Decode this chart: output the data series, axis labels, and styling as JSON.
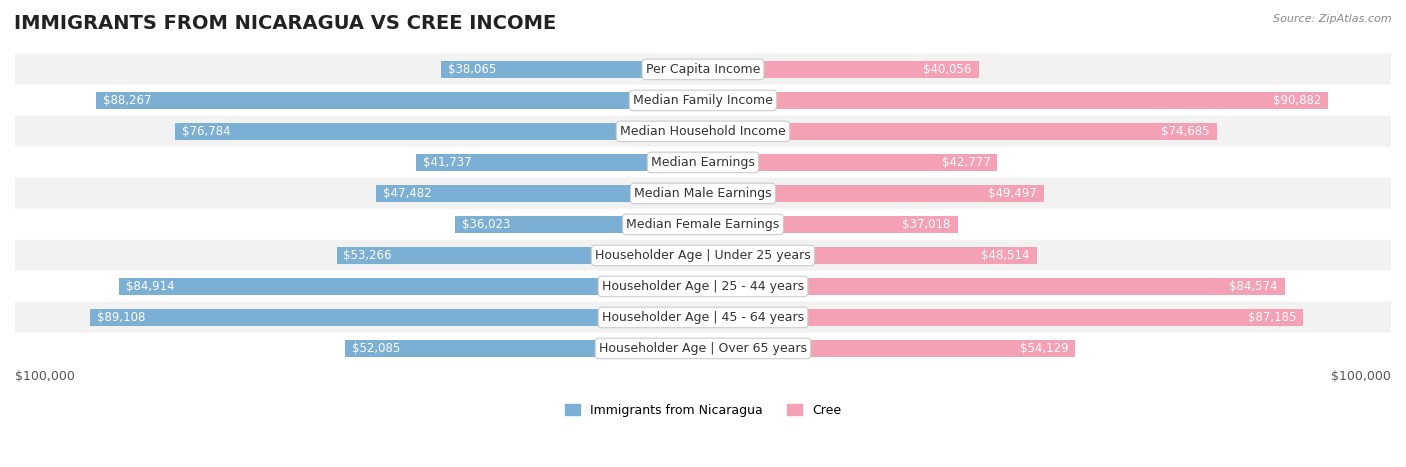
{
  "title": "IMMIGRANTS FROM NICARAGUA VS CREE INCOME",
  "source": "Source: ZipAtlas.com",
  "categories": [
    "Per Capita Income",
    "Median Family Income",
    "Median Household Income",
    "Median Earnings",
    "Median Male Earnings",
    "Median Female Earnings",
    "Householder Age | Under 25 years",
    "Householder Age | 25 - 44 years",
    "Householder Age | 45 - 64 years",
    "Householder Age | Over 65 years"
  ],
  "nicaragua_values": [
    38065,
    88267,
    76784,
    41737,
    47482,
    36023,
    53266,
    84914,
    89108,
    52085
  ],
  "cree_values": [
    40056,
    90882,
    74685,
    42777,
    49497,
    37018,
    48514,
    84574,
    87185,
    54129
  ],
  "nicaragua_color": "#7bafd4",
  "cree_color": "#f4a0b5",
  "nicaragua_label": "Immigrants from Nicaragua",
  "cree_label": "Cree",
  "max_value": 100000,
  "xlabel_left": "$100,000",
  "xlabel_right": "$100,000",
  "bg_color": "#ffffff",
  "row_bg_even": "#f2f2f2",
  "row_bg_odd": "#ffffff",
  "bar_height": 0.55,
  "label_fontsize": 9,
  "title_fontsize": 14,
  "value_fontsize": 8.5
}
